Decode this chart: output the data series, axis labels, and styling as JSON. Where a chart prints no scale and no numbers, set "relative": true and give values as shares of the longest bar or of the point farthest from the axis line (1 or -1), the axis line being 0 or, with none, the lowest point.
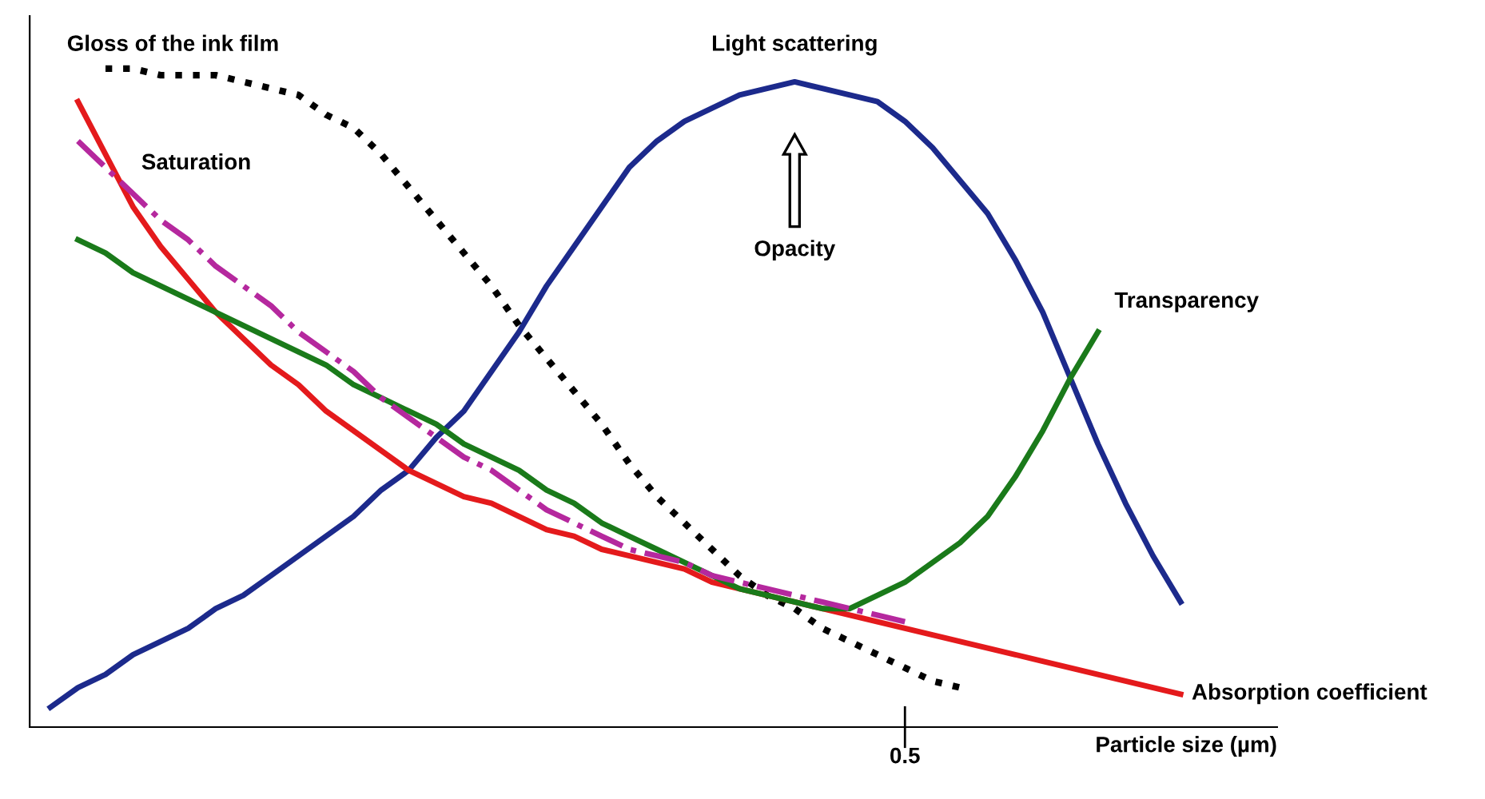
{
  "chart_data": {
    "type": "line",
    "relative": true,
    "xlabel": "Particle size (µm)",
    "categories": [
      null,
      null,
      null,
      null,
      null,
      null,
      null,
      null,
      null,
      null,
      null,
      null,
      null,
      null,
      null,
      null,
      null,
      null,
      null,
      null,
      null,
      null,
      null,
      null,
      null,
      null,
      null,
      null,
      null,
      null,
      null,
      null,
      null,
      null,
      null,
      null,
      null,
      null,
      null,
      null,
      null,
      null,
      null
    ],
    "series": [
      {
        "name": "Light scattering",
        "color": "#1c2a8c",
        "line_style": "solid",
        "values": [
          0.03,
          0.06,
          0.08,
          0.11,
          0.13,
          0.15,
          0.18,
          0.2,
          0.23,
          0.26,
          0.29,
          0.32,
          0.36,
          0.39,
          0.44,
          0.48,
          0.54,
          0.6,
          0.67,
          0.73,
          0.79,
          0.85,
          0.89,
          0.92,
          0.94,
          0.96,
          0.97,
          0.98,
          0.97,
          0.96,
          0.95,
          0.92,
          0.88,
          0.83,
          0.78,
          0.71,
          0.63,
          0.53,
          0.43,
          0.34,
          0.26,
          0.19,
          null
        ]
      },
      {
        "name": "Gloss of the ink film",
        "color": "#000000",
        "line_style": "dotted",
        "values": [
          null,
          null,
          1.0,
          1.0,
          0.99,
          0.99,
          0.99,
          0.98,
          0.97,
          0.96,
          0.93,
          0.91,
          0.87,
          0.82,
          0.77,
          0.72,
          0.67,
          0.61,
          0.56,
          0.51,
          0.46,
          0.4,
          0.35,
          0.31,
          0.27,
          0.23,
          0.2,
          0.18,
          0.15,
          0.13,
          0.11,
          0.09,
          0.07,
          0.06,
          null,
          null,
          null,
          null,
          null,
          null,
          null,
          null,
          null
        ]
      },
      {
        "name": "Absorption coefficient",
        "color": "#e41a1c",
        "line_style": "solid",
        "values": [
          null,
          0.95,
          0.87,
          0.79,
          0.73,
          0.68,
          0.63,
          0.59,
          0.55,
          0.52,
          0.48,
          0.45,
          0.42,
          0.39,
          0.37,
          0.35,
          0.34,
          0.32,
          0.3,
          0.29,
          0.27,
          0.26,
          0.25,
          0.24,
          0.22,
          0.21,
          0.2,
          0.19,
          0.18,
          0.17,
          0.16,
          0.15,
          0.14,
          0.13,
          0.12,
          0.11,
          0.1,
          0.09,
          0.08,
          0.07,
          0.06,
          0.05,
          null
        ]
      },
      {
        "name": "Transparency",
        "color": "#1a7a1a",
        "line_style": "solid",
        "values": [
          null,
          0.74,
          0.72,
          0.69,
          0.67,
          0.65,
          0.63,
          0.61,
          0.59,
          0.57,
          0.55,
          0.52,
          0.5,
          0.48,
          0.46,
          0.43,
          0.41,
          0.39,
          0.36,
          0.34,
          0.31,
          0.29,
          0.27,
          0.25,
          0.23,
          0.21,
          0.2,
          0.19,
          0.18,
          0.18,
          0.2,
          0.22,
          0.25,
          0.28,
          0.32,
          0.38,
          0.45,
          0.53,
          0.6,
          null,
          null,
          null,
          null
        ]
      },
      {
        "name": "Saturation",
        "color": "#b5289e",
        "line_style": "dashdot",
        "values": [
          null,
          0.89,
          0.85,
          0.81,
          0.77,
          0.74,
          0.7,
          0.67,
          0.64,
          0.6,
          0.57,
          0.54,
          0.5,
          0.47,
          0.44,
          0.41,
          0.39,
          0.36,
          0.33,
          0.31,
          0.29,
          0.27,
          0.26,
          0.25,
          0.23,
          0.22,
          0.21,
          0.2,
          0.19,
          0.18,
          0.17,
          0.16,
          null,
          null,
          null,
          null,
          null,
          null,
          null,
          null,
          null,
          null,
          null
        ]
      }
    ],
    "annotations": [
      "Opacity",
      "0.5"
    ]
  }
}
